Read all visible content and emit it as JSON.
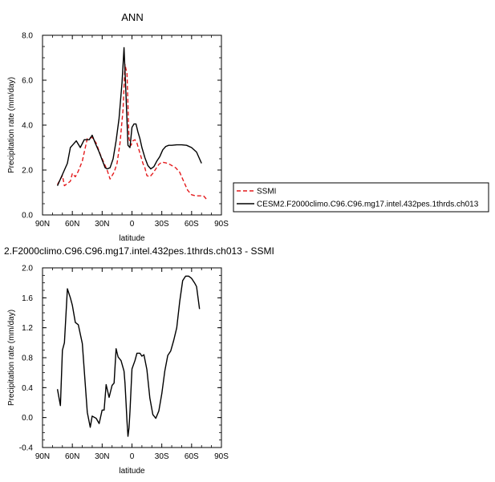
{
  "chart_data": [
    {
      "type": "line",
      "title": "ANN",
      "xlabel": "latitude",
      "ylabel": "Precipitation rate (mm/day)",
      "xlim": [
        90,
        -90
      ],
      "ylim": [
        0,
        8
      ],
      "x_ticks": [
        90,
        60,
        30,
        0,
        -30,
        -60,
        -90
      ],
      "x_tick_labels": [
        "90N",
        "60N",
        "30N",
        "0",
        "30S",
        "60S",
        "90S"
      ],
      "y_ticks": [
        0,
        2,
        4,
        6,
        8
      ],
      "y_tick_labels": [
        "0.0",
        "2.0",
        "4.0",
        "6.0",
        "8.0"
      ],
      "legend_position": "right",
      "series": [
        {
          "name": "SSMI",
          "color": "#e41a1c",
          "dash": "dashed",
          "x": [
            75,
            72,
            70,
            68,
            65,
            62,
            60,
            57,
            54,
            50,
            45,
            40,
            36,
            32,
            28,
            25,
            22,
            18,
            15,
            12,
            9,
            7,
            5,
            3,
            1,
            -1,
            -3,
            -5,
            -7,
            -9,
            -11,
            -13,
            -15,
            -18,
            -21,
            -24,
            -27,
            -30,
            -33,
            -36,
            -40,
            -44,
            -48,
            -52,
            -56,
            -60,
            -64,
            -68,
            -72,
            -75
          ],
          "y": [
            1.35,
            1.6,
            1.75,
            1.3,
            1.4,
            1.5,
            1.85,
            1.7,
            1.95,
            2.4,
            3.4,
            3.45,
            3.2,
            2.7,
            2.3,
            2.0,
            1.6,
            1.9,
            2.3,
            3.2,
            4.7,
            6.7,
            6.3,
            3.4,
            3.1,
            3.3,
            3.35,
            3.2,
            2.9,
            2.6,
            2.3,
            2.1,
            1.75,
            1.7,
            1.85,
            2.05,
            2.25,
            2.35,
            2.33,
            2.3,
            2.2,
            2.1,
            1.9,
            1.5,
            1.1,
            0.9,
            0.85,
            0.85,
            0.85,
            0.7
          ]
        },
        {
          "name": "CESM2.F2000climo.C96.C96.mg17.intel.432pes.1thrds.ch013",
          "color": "#000000",
          "dash": "solid",
          "x": [
            75,
            70,
            65,
            62,
            59,
            56,
            52,
            48,
            43,
            40,
            37,
            33,
            30,
            27,
            25,
            22,
            19,
            16,
            13,
            10,
            8,
            6,
            4,
            2,
            0,
            -2,
            -4,
            -6,
            -8,
            -10,
            -13,
            -16,
            -19,
            -22,
            -25,
            -28,
            -31,
            -34,
            -37,
            -40,
            -45,
            -50,
            -55,
            -60,
            -65,
            -70
          ],
          "y": [
            1.3,
            1.8,
            2.3,
            3.0,
            3.15,
            3.3,
            3.0,
            3.35,
            3.35,
            3.55,
            3.2,
            2.8,
            2.45,
            2.1,
            2.05,
            2.1,
            2.5,
            3.3,
            4.3,
            5.9,
            7.45,
            5.3,
            3.1,
            3.0,
            3.9,
            4.05,
            4.05,
            3.7,
            3.4,
            3.0,
            2.55,
            2.2,
            2.05,
            2.15,
            2.4,
            2.6,
            2.9,
            3.05,
            3.1,
            3.1,
            3.12,
            3.12,
            3.1,
            3.0,
            2.8,
            2.3
          ]
        }
      ]
    },
    {
      "type": "line",
      "title": "2.F2000climo.C96.C96.mg17.intel.432pes.1thrds.ch013 - SSMI",
      "xlabel": "latitude",
      "ylabel": "Precipitation rate (mm/day)",
      "xlim": [
        90,
        -90
      ],
      "ylim": [
        -0.4,
        2.0
      ],
      "x_ticks": [
        90,
        60,
        30,
        0,
        -30,
        -60,
        -90
      ],
      "x_tick_labels": [
        "90N",
        "60N",
        "30N",
        "0",
        "30S",
        "60S",
        "90S"
      ],
      "y_ticks": [
        -0.4,
        0.0,
        0.4,
        0.8,
        1.2,
        1.6,
        2.0
      ],
      "y_tick_labels": [
        "-0.4",
        "0.0",
        "0.4",
        "0.8",
        "1.2",
        "1.6",
        "2.0"
      ],
      "series": [
        {
          "color": "#000000",
          "dash": "solid",
          "x": [
            75,
            72,
            70,
            68,
            65,
            62,
            60,
            57,
            54,
            50,
            45,
            42,
            40,
            36,
            33,
            30,
            28,
            26,
            23,
            20,
            18,
            16,
            14,
            11,
            8,
            7,
            6,
            5,
            4,
            3,
            2,
            0,
            -3,
            -5,
            -8,
            -10,
            -12,
            -15,
            -18,
            -21,
            -24,
            -27,
            -30,
            -33,
            -36,
            -39,
            -42,
            -45,
            -48,
            -51,
            -54,
            -57,
            -60,
            -63,
            -65,
            -68
          ],
          "y": [
            0.38,
            0.16,
            0.9,
            1.0,
            1.72,
            1.6,
            1.5,
            1.27,
            1.24,
            0.99,
            0.07,
            -0.13,
            0.02,
            -0.01,
            -0.08,
            0.1,
            0.1,
            0.44,
            0.27,
            0.43,
            0.46,
            0.92,
            0.81,
            0.76,
            0.62,
            0.46,
            0.2,
            -0.05,
            -0.25,
            -0.14,
            0.08,
            0.65,
            0.76,
            0.86,
            0.86,
            0.82,
            0.84,
            0.64,
            0.26,
            0.04,
            -0.01,
            0.09,
            0.32,
            0.62,
            0.83,
            0.89,
            1.03,
            1.2,
            1.55,
            1.83,
            1.89,
            1.89,
            1.86,
            1.8,
            1.75,
            1.45
          ]
        }
      ]
    }
  ]
}
